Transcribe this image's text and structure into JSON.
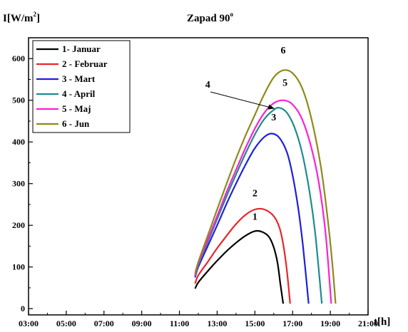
{
  "chart_data": {
    "type": "line",
    "title": "Zapad 90°",
    "title_main": "Zapad 90",
    "title_sup": "o",
    "ylabel_pre": "I[W/m",
    "ylabel_sup": "2",
    "ylabel_post": "]",
    "xlabel": "t[h]",
    "xlim": [
      3,
      21
    ],
    "ylim": [
      -15,
      650
    ],
    "x_tick_values": [
      3,
      5,
      7,
      9,
      11,
      13,
      15,
      17,
      19,
      21
    ],
    "x_tick_labels": [
      "03:00",
      "05:00",
      "07:00",
      "09:00",
      "11:00",
      "13:00",
      "15:00",
      "17:00",
      "19:00",
      "21:00"
    ],
    "y_ticks": [
      0,
      100,
      200,
      300,
      400,
      500,
      600
    ],
    "grid": false,
    "legend_position": "top-left",
    "series": [
      {
        "name": "1- Januar",
        "label": "1",
        "color": "#000000",
        "x": [
          11.83,
          12.0,
          12.5,
          13.0,
          13.5,
          14.0,
          14.5,
          15.0,
          15.4,
          15.75,
          16.0,
          16.2,
          16.35,
          16.5
        ],
        "y": [
          48,
          63,
          90,
          115,
          138,
          158,
          175,
          186,
          184,
          172,
          147,
          110,
          60,
          12
        ]
      },
      {
        "name": "2 - Februar",
        "label": "2",
        "color": "#e8262b",
        "x": [
          11.83,
          12.0,
          12.5,
          13.0,
          13.5,
          14.0,
          14.5,
          15.0,
          15.5,
          16.0,
          16.3,
          16.5,
          16.7,
          16.87
        ],
        "y": [
          60,
          80,
          112,
          145,
          175,
          203,
          225,
          238,
          238,
          222,
          195,
          155,
          90,
          12
        ]
      },
      {
        "name": "3 - Mart",
        "label": "3",
        "color": "#1f20d8",
        "x": [
          11.83,
          12.0,
          12.5,
          13.0,
          13.5,
          14.0,
          14.5,
          15.0,
          15.5,
          15.9,
          16.3,
          16.7,
          17.0,
          17.3,
          17.55,
          17.85
        ],
        "y": [
          75,
          100,
          150,
          200,
          252,
          300,
          345,
          385,
          412,
          420,
          410,
          375,
          320,
          240,
          150,
          12
        ]
      },
      {
        "name": "4 - April",
        "label": "4",
        "color": "#1e8c8c",
        "x": [
          11.83,
          12.0,
          12.5,
          13.0,
          13.5,
          14.0,
          14.5,
          15.0,
          15.5,
          16.0,
          16.3,
          16.7,
          17.1,
          17.5,
          17.9,
          18.2,
          18.55
        ],
        "y": [
          78,
          105,
          160,
          215,
          270,
          322,
          372,
          418,
          455,
          477,
          482,
          470,
          435,
          375,
          280,
          180,
          12
        ]
      },
      {
        "name": "5 - Maj",
        "label": "5",
        "color": "#ff1fd4",
        "x": [
          11.83,
          12.0,
          12.5,
          13.0,
          13.5,
          14.0,
          14.5,
          15.0,
          15.5,
          16.0,
          16.5,
          17.0,
          17.5,
          18.0,
          18.4,
          18.75,
          19.05
        ],
        "y": [
          80,
          108,
          165,
          222,
          280,
          333,
          385,
          432,
          470,
          493,
          500,
          490,
          455,
          385,
          300,
          180,
          12
        ]
      },
      {
        "name": "6 - Jun",
        "label": "6",
        "color": "#8d8a1a",
        "x": [
          11.83,
          12.0,
          12.5,
          13.0,
          13.5,
          14.0,
          14.5,
          15.0,
          15.5,
          16.0,
          16.5,
          17.0,
          17.5,
          18.0,
          18.5,
          18.85,
          19.1,
          19.28
        ],
        "y": [
          85,
          112,
          175,
          238,
          300,
          360,
          415,
          465,
          515,
          555,
          572,
          565,
          530,
          455,
          340,
          220,
          110,
          12
        ]
      }
    ],
    "annotations": [
      {
        "text": "6",
        "x": 16.5,
        "y": 612
      },
      {
        "text": "5",
        "x": 16.6,
        "y": 535
      },
      {
        "text": "4",
        "x": 12.5,
        "y": 530
      },
      {
        "text": "3",
        "x": 16.0,
        "y": 452
      },
      {
        "text": "2",
        "x": 15.0,
        "y": 270
      },
      {
        "text": "1",
        "x": 15.0,
        "y": 213
      }
    ],
    "arrow": {
      "from_x": 12.65,
      "from_y": 520,
      "to_x": 16.05,
      "to_y": 480
    }
  }
}
